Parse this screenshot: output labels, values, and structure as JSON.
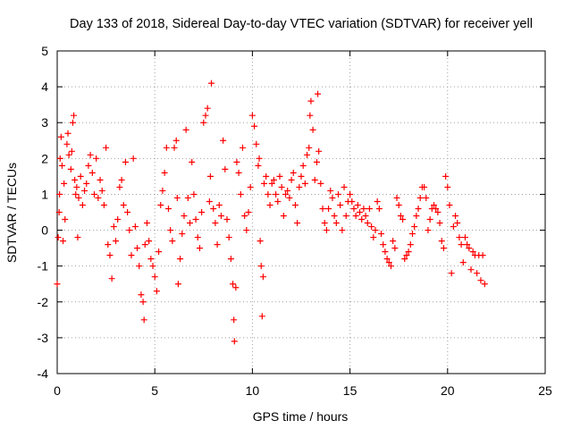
{
  "chart_data": {
    "type": "scatter",
    "title": "Day 133 of 2018, Sidereal Day-to-day VTEC variation (SDTVAR) for receiver yell",
    "xlabel": "GPS time / hours",
    "ylabel": "SDTVAR / TECUs",
    "xlim": [
      0,
      25
    ],
    "ylim": [
      -4,
      5
    ],
    "xticks": [
      0,
      5,
      10,
      15,
      20,
      25
    ],
    "yticks": [
      -4,
      -3,
      -2,
      -1,
      0,
      1,
      2,
      3,
      4,
      5
    ],
    "grid": true,
    "marker": "+",
    "marker_color": "#ff0000",
    "series": [
      {
        "name": "SDTVAR",
        "points": [
          [
            0.0,
            -1.5
          ],
          [
            0.05,
            -0.2
          ],
          [
            0.1,
            0.5
          ],
          [
            0.12,
            1.0
          ],
          [
            0.15,
            2.0
          ],
          [
            0.2,
            2.6
          ],
          [
            0.25,
            1.8
          ],
          [
            0.3,
            -0.3
          ],
          [
            0.35,
            1.3
          ],
          [
            0.4,
            0.3
          ],
          [
            0.5,
            2.4
          ],
          [
            0.55,
            2.7
          ],
          [
            0.6,
            2.1
          ],
          [
            0.7,
            1.7
          ],
          [
            0.75,
            2.2
          ],
          [
            0.8,
            3.0
          ],
          [
            0.85,
            3.2
          ],
          [
            0.9,
            1.4
          ],
          [
            0.95,
            1.0
          ],
          [
            1.0,
            1.2
          ],
          [
            1.05,
            -0.2
          ],
          [
            1.1,
            0.9
          ],
          [
            1.2,
            1.5
          ],
          [
            1.3,
            0.7
          ],
          [
            1.4,
            1.1
          ],
          [
            1.5,
            1.3
          ],
          [
            1.6,
            1.8
          ],
          [
            1.7,
            2.1
          ],
          [
            1.8,
            1.6
          ],
          [
            1.9,
            1.0
          ],
          [
            2.0,
            2.0
          ],
          [
            2.1,
            0.9
          ],
          [
            2.2,
            1.4
          ],
          [
            2.3,
            1.1
          ],
          [
            2.4,
            0.7
          ],
          [
            2.5,
            2.3
          ],
          [
            2.6,
            -0.4
          ],
          [
            2.7,
            -0.7
          ],
          [
            2.8,
            -1.35
          ],
          [
            2.9,
            0.1
          ],
          [
            3.0,
            -0.3
          ],
          [
            3.1,
            0.3
          ],
          [
            3.2,
            1.2
          ],
          [
            3.3,
            1.4
          ],
          [
            3.4,
            0.7
          ],
          [
            3.5,
            1.9
          ],
          [
            3.6,
            0.5
          ],
          [
            3.7,
            0.0
          ],
          [
            3.8,
            -0.7
          ],
          [
            3.9,
            2.0
          ],
          [
            4.0,
            0.1
          ],
          [
            4.1,
            -0.5
          ],
          [
            4.2,
            -1.0
          ],
          [
            4.3,
            -1.8
          ],
          [
            4.4,
            -2.0
          ],
          [
            4.45,
            -2.5
          ],
          [
            4.5,
            -0.4
          ],
          [
            4.6,
            0.2
          ],
          [
            4.7,
            -0.3
          ],
          [
            4.8,
            -0.8
          ],
          [
            4.9,
            -1.0
          ],
          [
            5.0,
            -1.3
          ],
          [
            5.1,
            -1.7
          ],
          [
            5.2,
            -0.6
          ],
          [
            5.3,
            0.7
          ],
          [
            5.4,
            1.1
          ],
          [
            5.5,
            1.6
          ],
          [
            5.6,
            2.3
          ],
          [
            5.7,
            0.6
          ],
          [
            5.8,
            0.0
          ],
          [
            5.9,
            -0.3
          ],
          [
            6.0,
            2.3
          ],
          [
            6.1,
            2.5
          ],
          [
            6.15,
            0.9
          ],
          [
            6.2,
            -1.5
          ],
          [
            6.3,
            -0.8
          ],
          [
            6.4,
            -0.1
          ],
          [
            6.5,
            0.4
          ],
          [
            6.6,
            2.8
          ],
          [
            6.7,
            0.9
          ],
          [
            6.8,
            0.2
          ],
          [
            6.9,
            1.9
          ],
          [
            7.0,
            1.0
          ],
          [
            7.1,
            0.3
          ],
          [
            7.2,
            -0.2
          ],
          [
            7.3,
            -0.5
          ],
          [
            7.4,
            0.5
          ],
          [
            7.5,
            3.0
          ],
          [
            7.6,
            3.2
          ],
          [
            7.7,
            3.4
          ],
          [
            7.8,
            0.8
          ],
          [
            7.85,
            1.5
          ],
          [
            7.9,
            4.1
          ],
          [
            8.0,
            0.6
          ],
          [
            8.1,
            0.2
          ],
          [
            8.2,
            -0.4
          ],
          [
            8.3,
            0.7
          ],
          [
            8.4,
            0.4
          ],
          [
            8.5,
            2.5
          ],
          [
            8.6,
            1.7
          ],
          [
            8.7,
            0.3
          ],
          [
            8.8,
            -0.2
          ],
          [
            8.9,
            -0.8
          ],
          [
            9.0,
            -1.5
          ],
          [
            9.05,
            -2.5
          ],
          [
            9.08,
            -3.1
          ],
          [
            9.15,
            -1.6
          ],
          [
            9.2,
            1.9
          ],
          [
            9.3,
            1.6
          ],
          [
            9.4,
            1.0
          ],
          [
            9.5,
            2.3
          ],
          [
            9.6,
            0.4
          ],
          [
            9.7,
            0.0
          ],
          [
            9.8,
            0.5
          ],
          [
            9.9,
            1.2
          ],
          [
            10.0,
            3.2
          ],
          [
            10.1,
            2.9
          ],
          [
            10.2,
            2.4
          ],
          [
            10.3,
            1.8
          ],
          [
            10.35,
            2.0
          ],
          [
            10.4,
            -0.3
          ],
          [
            10.45,
            -1.0
          ],
          [
            10.5,
            -2.4
          ],
          [
            10.55,
            -1.3
          ],
          [
            10.6,
            1.3
          ],
          [
            10.7,
            1.5
          ],
          [
            10.8,
            1.0
          ],
          [
            10.9,
            0.7
          ],
          [
            11.0,
            1.3
          ],
          [
            11.1,
            1.4
          ],
          [
            11.2,
            1.0
          ],
          [
            11.3,
            0.8
          ],
          [
            11.4,
            1.5
          ],
          [
            11.5,
            1.2
          ],
          [
            11.6,
            0.4
          ],
          [
            11.7,
            1.0
          ],
          [
            11.8,
            1.1
          ],
          [
            11.9,
            0.9
          ],
          [
            12.0,
            1.4
          ],
          [
            12.1,
            1.6
          ],
          [
            12.2,
            0.7
          ],
          [
            12.3,
            0.2
          ],
          [
            12.4,
            1.2
          ],
          [
            12.5,
            1.5
          ],
          [
            12.6,
            1.8
          ],
          [
            12.7,
            1.3
          ],
          [
            12.8,
            2.1
          ],
          [
            12.9,
            2.3
          ],
          [
            12.95,
            3.2
          ],
          [
            13.0,
            3.6
          ],
          [
            13.1,
            2.8
          ],
          [
            13.2,
            1.4
          ],
          [
            13.3,
            1.9
          ],
          [
            13.35,
            3.8
          ],
          [
            13.4,
            2.2
          ],
          [
            13.5,
            1.3
          ],
          [
            13.6,
            0.6
          ],
          [
            13.7,
            0.2
          ],
          [
            13.8,
            0.0
          ],
          [
            13.9,
            0.6
          ],
          [
            14.0,
            1.1
          ],
          [
            14.1,
            0.9
          ],
          [
            14.2,
            0.4
          ],
          [
            14.3,
            0.2
          ],
          [
            14.4,
            1.0
          ],
          [
            14.5,
            0.7
          ],
          [
            14.6,
            0.0
          ],
          [
            14.7,
            1.2
          ],
          [
            14.8,
            0.4
          ],
          [
            14.9,
            0.8
          ],
          [
            15.0,
            1.0
          ],
          [
            15.1,
            0.8
          ],
          [
            15.2,
            0.6
          ],
          [
            15.3,
            0.4
          ],
          [
            15.4,
            0.7
          ],
          [
            15.5,
            0.5
          ],
          [
            15.6,
            0.3
          ],
          [
            15.7,
            0.6
          ],
          [
            15.8,
            0.4
          ],
          [
            15.9,
            0.2
          ],
          [
            16.0,
            0.6
          ],
          [
            16.1,
            0.1
          ],
          [
            16.2,
            -0.2
          ],
          [
            16.3,
            0.0
          ],
          [
            16.4,
            0.8
          ],
          [
            16.5,
            0.6
          ],
          [
            16.6,
            -0.1
          ],
          [
            16.7,
            -0.4
          ],
          [
            16.8,
            -0.6
          ],
          [
            16.9,
            -0.8
          ],
          [
            17.0,
            -0.9
          ],
          [
            17.1,
            -1.0
          ],
          [
            17.2,
            -0.3
          ],
          [
            17.3,
            -0.5
          ],
          [
            17.4,
            0.9
          ],
          [
            17.5,
            0.7
          ],
          [
            17.6,
            0.4
          ],
          [
            17.7,
            0.3
          ],
          [
            17.8,
            -0.8
          ],
          [
            17.9,
            -0.7
          ],
          [
            18.0,
            -0.6
          ],
          [
            18.1,
            -0.4
          ],
          [
            18.2,
            -0.1
          ],
          [
            18.3,
            0.1
          ],
          [
            18.4,
            0.4
          ],
          [
            18.5,
            0.6
          ],
          [
            18.6,
            0.9
          ],
          [
            18.7,
            1.2
          ],
          [
            18.8,
            1.2
          ],
          [
            18.9,
            0.9
          ],
          [
            19.0,
            0.0
          ],
          [
            19.1,
            0.3
          ],
          [
            19.2,
            0.6
          ],
          [
            19.3,
            0.7
          ],
          [
            19.4,
            0.6
          ],
          [
            19.5,
            0.5
          ],
          [
            19.6,
            0.2
          ],
          [
            19.7,
            -0.3
          ],
          [
            19.8,
            -0.5
          ],
          [
            19.9,
            1.5
          ],
          [
            20.0,
            1.2
          ],
          [
            20.1,
            0.7
          ],
          [
            20.2,
            -1.2
          ],
          [
            20.3,
            0.1
          ],
          [
            20.4,
            0.4
          ],
          [
            20.5,
            0.2
          ],
          [
            20.6,
            -0.2
          ],
          [
            20.7,
            -0.4
          ],
          [
            20.8,
            -0.9
          ],
          [
            20.9,
            -0.2
          ],
          [
            21.0,
            -0.4
          ],
          [
            21.1,
            -0.5
          ],
          [
            21.2,
            -1.1
          ],
          [
            21.3,
            -0.6
          ],
          [
            21.4,
            -0.7
          ],
          [
            21.5,
            -1.2
          ],
          [
            21.6,
            -0.7
          ],
          [
            21.7,
            -1.4
          ],
          [
            21.8,
            -0.7
          ],
          [
            21.9,
            -1.5
          ]
        ]
      }
    ]
  }
}
